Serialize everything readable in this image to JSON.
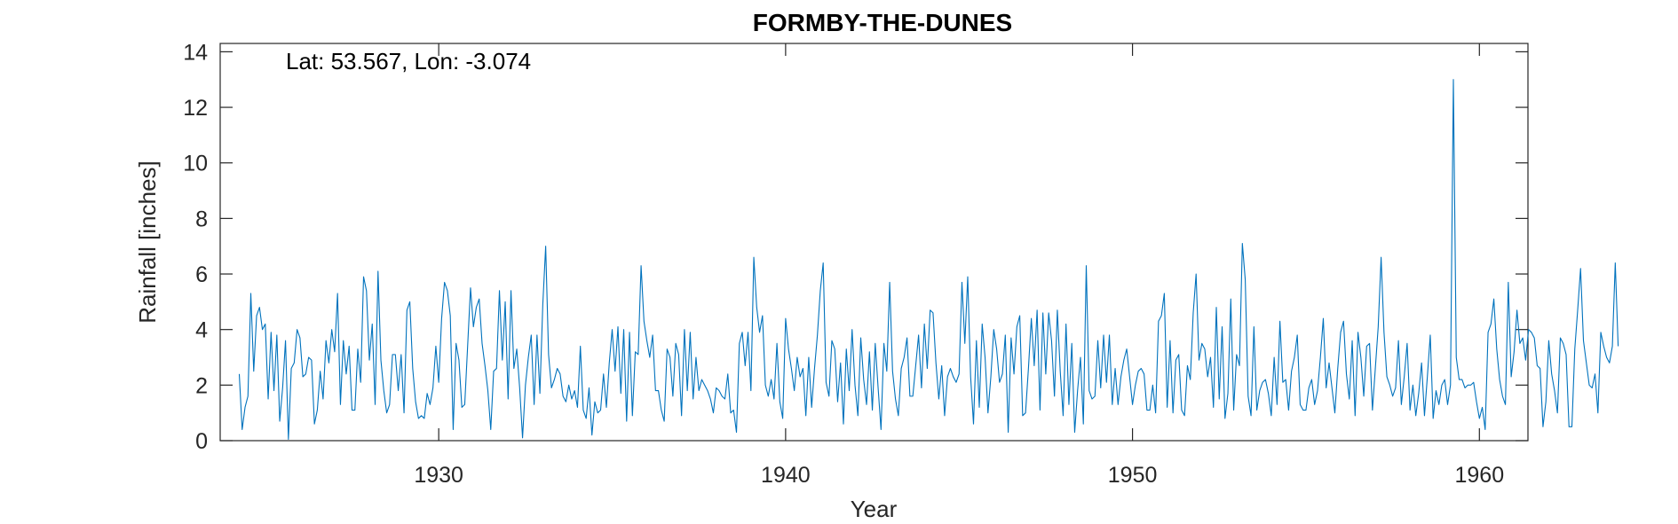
{
  "chart_data": {
    "type": "line",
    "title": "FORMBY-THE-DUNES",
    "xlabel": "Year",
    "ylabel": "Rainfall [inches]",
    "annotation": "Lat: 53.567, Lon: -3.074",
    "xlim": [
      1923.7,
      1961.4
    ],
    "ylim": [
      0,
      14.3
    ],
    "xticks": [
      1930,
      1940,
      1950,
      1960
    ],
    "yticks": [
      0,
      2,
      4,
      6,
      8,
      10,
      12,
      14
    ],
    "grid": false,
    "line_color": "#0072BD",
    "series": [
      {
        "x_start": 1924.25,
        "x_step_years": 0.0833333,
        "values": [
          2.4,
          0.4,
          1.2,
          1.6,
          5.3,
          2.5,
          4.5,
          4.8,
          4.0,
          4.2,
          1.5,
          3.9,
          1.8,
          3.8,
          0.7,
          1.9,
          3.6,
          0.05,
          2.6,
          2.8,
          4.0,
          3.7,
          2.3,
          2.4,
          3.0,
          2.9,
          0.6,
          1.1,
          2.5,
          1.5,
          3.6,
          2.8,
          4.0,
          3.2,
          5.3,
          1.3,
          3.6,
          2.4,
          3.4,
          1.1,
          1.1,
          3.3,
          2.1,
          5.9,
          5.4,
          2.9,
          4.2,
          1.3,
          6.1,
          2.9,
          1.8,
          1.0,
          1.3,
          3.1,
          3.1,
          1.8,
          3.1,
          1.0,
          4.7,
          5.0,
          2.6,
          1.4,
          0.8,
          0.9,
          0.8,
          1.7,
          1.3,
          1.9,
          3.4,
          2.1,
          4.4,
          5.7,
          5.4,
          4.5,
          0.4,
          3.5,
          2.9,
          1.2,
          1.3,
          3.4,
          5.5,
          4.1,
          4.8,
          5.1,
          3.5,
          2.7,
          1.8,
          0.4,
          2.5,
          2.6,
          5.4,
          2.9,
          5.0,
          1.5,
          5.4,
          2.6,
          3.3,
          1.9,
          0.1,
          2.0,
          3.0,
          3.8,
          1.3,
          3.8,
          1.7,
          4.9,
          7.0,
          3.1,
          1.9,
          2.2,
          2.6,
          2.4,
          1.6,
          1.4,
          2.0,
          1.5,
          1.8,
          1.2,
          3.4,
          1.1,
          0.8,
          1.9,
          0.2,
          1.4,
          1.0,
          1.1,
          2.4,
          1.2,
          2.8,
          4.0,
          2.5,
          4.1,
          1.7,
          4.0,
          0.7,
          3.9,
          0.9,
          3.2,
          3.1,
          6.3,
          4.3,
          3.6,
          3.0,
          3.8,
          1.8,
          1.8,
          1.1,
          0.7,
          3.3,
          3.0,
          1.6,
          3.5,
          3.1,
          0.9,
          4.0,
          1.8,
          3.9,
          1.5,
          3.0,
          1.8,
          2.2,
          2.0,
          1.8,
          1.5,
          1.0,
          1.9,
          1.8,
          1.6,
          1.5,
          2.4,
          1.0,
          1.1,
          0.3,
          3.5,
          3.9,
          2.7,
          3.9,
          1.8,
          6.6,
          4.8,
          3.9,
          4.5,
          2.0,
          1.6,
          2.2,
          1.5,
          3.5,
          1.4,
          0.8,
          4.4,
          3.3,
          2.6,
          1.8,
          3.0,
          2.3,
          2.6,
          0.9,
          3.0,
          1.2,
          2.6,
          3.8,
          5.4,
          6.4,
          2.1,
          1.6,
          3.6,
          3.3,
          1.4,
          2.8,
          0.6,
          3.3,
          1.8,
          4.0,
          2.0,
          0.9,
          3.7,
          2.2,
          1.3,
          3.2,
          1.1,
          3.5,
          1.9,
          0.4,
          3.5,
          2.5,
          5.7,
          2.5,
          1.5,
          0.9,
          2.6,
          3.0,
          3.7,
          1.6,
          1.6,
          2.7,
          3.8,
          1.9,
          4.2,
          2.6,
          4.7,
          4.6,
          2.8,
          1.5,
          2.7,
          0.9,
          2.3,
          2.6,
          2.3,
          2.1,
          2.4,
          5.7,
          3.5,
          5.9,
          2.3,
          0.6,
          3.6,
          1.2,
          4.2,
          3.0,
          1.0,
          2.3,
          4.0,
          3.3,
          2.1,
          2.4,
          3.8,
          0.3,
          3.7,
          2.4,
          4.1,
          4.5,
          0.9,
          1.0,
          2.6,
          4.4,
          2.7,
          4.7,
          1.1,
          4.6,
          2.4,
          4.6,
          3.6,
          1.6,
          4.7,
          2.5,
          0.9,
          4.2,
          1.3,
          3.5,
          0.3,
          1.8,
          3.0,
          0.6,
          6.3,
          1.8,
          1.5,
          1.6,
          3.6,
          1.9,
          3.8,
          2.1,
          3.8,
          1.3,
          2.6,
          1.3,
          2.3,
          2.9,
          3.3,
          2.3,
          1.3,
          2.0,
          2.5,
          2.6,
          2.4,
          1.1,
          1.1,
          2.0,
          1.0,
          4.3,
          4.5,
          5.3,
          1.2,
          3.6,
          1.0,
          2.9,
          3.1,
          1.1,
          0.9,
          2.7,
          2.2,
          4.6,
          6.0,
          2.9,
          3.5,
          3.3,
          2.3,
          3.0,
          1.2,
          4.8,
          1.5,
          4.1,
          0.8,
          1.7,
          5.1,
          1.1,
          3.1,
          2.7,
          7.1,
          5.8,
          1.6,
          0.9,
          4.1,
          1.1,
          1.8,
          2.1,
          2.2,
          1.7,
          0.9,
          3.0,
          1.3,
          4.3,
          2.1,
          2.2,
          1.1,
          2.5,
          3.0,
          3.8,
          1.3,
          1.1,
          1.1,
          1.9,
          2.2,
          1.3,
          1.8,
          3.0,
          4.4,
          1.9,
          2.8,
          1.9,
          1.0,
          2.6,
          3.9,
          4.3,
          2.4,
          1.5,
          3.6,
          0.9,
          3.9,
          3.0,
          1.6,
          3.4,
          3.5,
          1.1,
          2.6,
          4.1,
          6.6,
          3.9,
          2.3,
          2.0,
          1.6,
          1.9,
          3.6,
          1.3,
          2.3,
          3.5,
          1.1,
          2.0,
          0.9,
          1.7,
          2.8,
          0.9,
          2.3,
          3.8,
          0.8,
          1.8,
          1.3,
          2.0,
          2.2,
          1.3,
          2.0,
          13.0,
          3.0,
          2.2,
          2.2,
          1.9,
          2.0,
          2.0,
          2.1,
          1.4,
          0.8,
          1.2,
          0.4,
          3.9,
          4.2,
          5.1,
          3.3,
          2.2,
          1.6,
          1.3,
          5.7,
          2.3,
          3.2,
          4.7,
          3.5,
          3.7,
          2.9,
          4.0,
          3.9,
          3.7,
          2.7,
          2.6,
          0.5,
          1.4,
          3.6,
          2.4,
          1.8,
          1.0,
          3.7,
          3.5,
          3.1,
          0.5,
          0.5,
          3.3,
          4.7,
          6.2,
          3.6,
          2.8,
          2.0,
          1.9,
          2.4,
          1.0,
          3.9,
          3.4,
          3.0,
          2.8,
          3.4,
          6.4,
          3.4
        ]
      }
    ]
  }
}
